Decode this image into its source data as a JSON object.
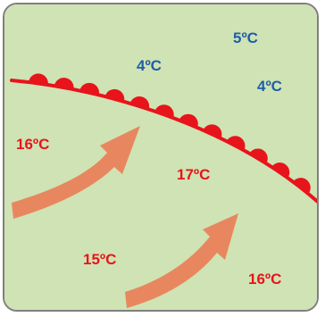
{
  "colors": {
    "background": "#cfe3b4",
    "border": "#7f7f7f",
    "front": "#e8141b",
    "warm_air_arrow": "#e8875f",
    "warm_text": "#e8141b",
    "cold_text": "#1f5fa8"
  },
  "front": {
    "type": "warm-front",
    "symbol": "semicircles",
    "semicircle_count": 12
  },
  "arrows": {
    "count": 2,
    "icon": "warm-air-arrow"
  },
  "temperatures": {
    "cold": [
      "5ºC",
      "4ºC",
      "4ºC"
    ],
    "warm": [
      "16ºC",
      "17ºC",
      "15ºC",
      "16ºC"
    ]
  }
}
